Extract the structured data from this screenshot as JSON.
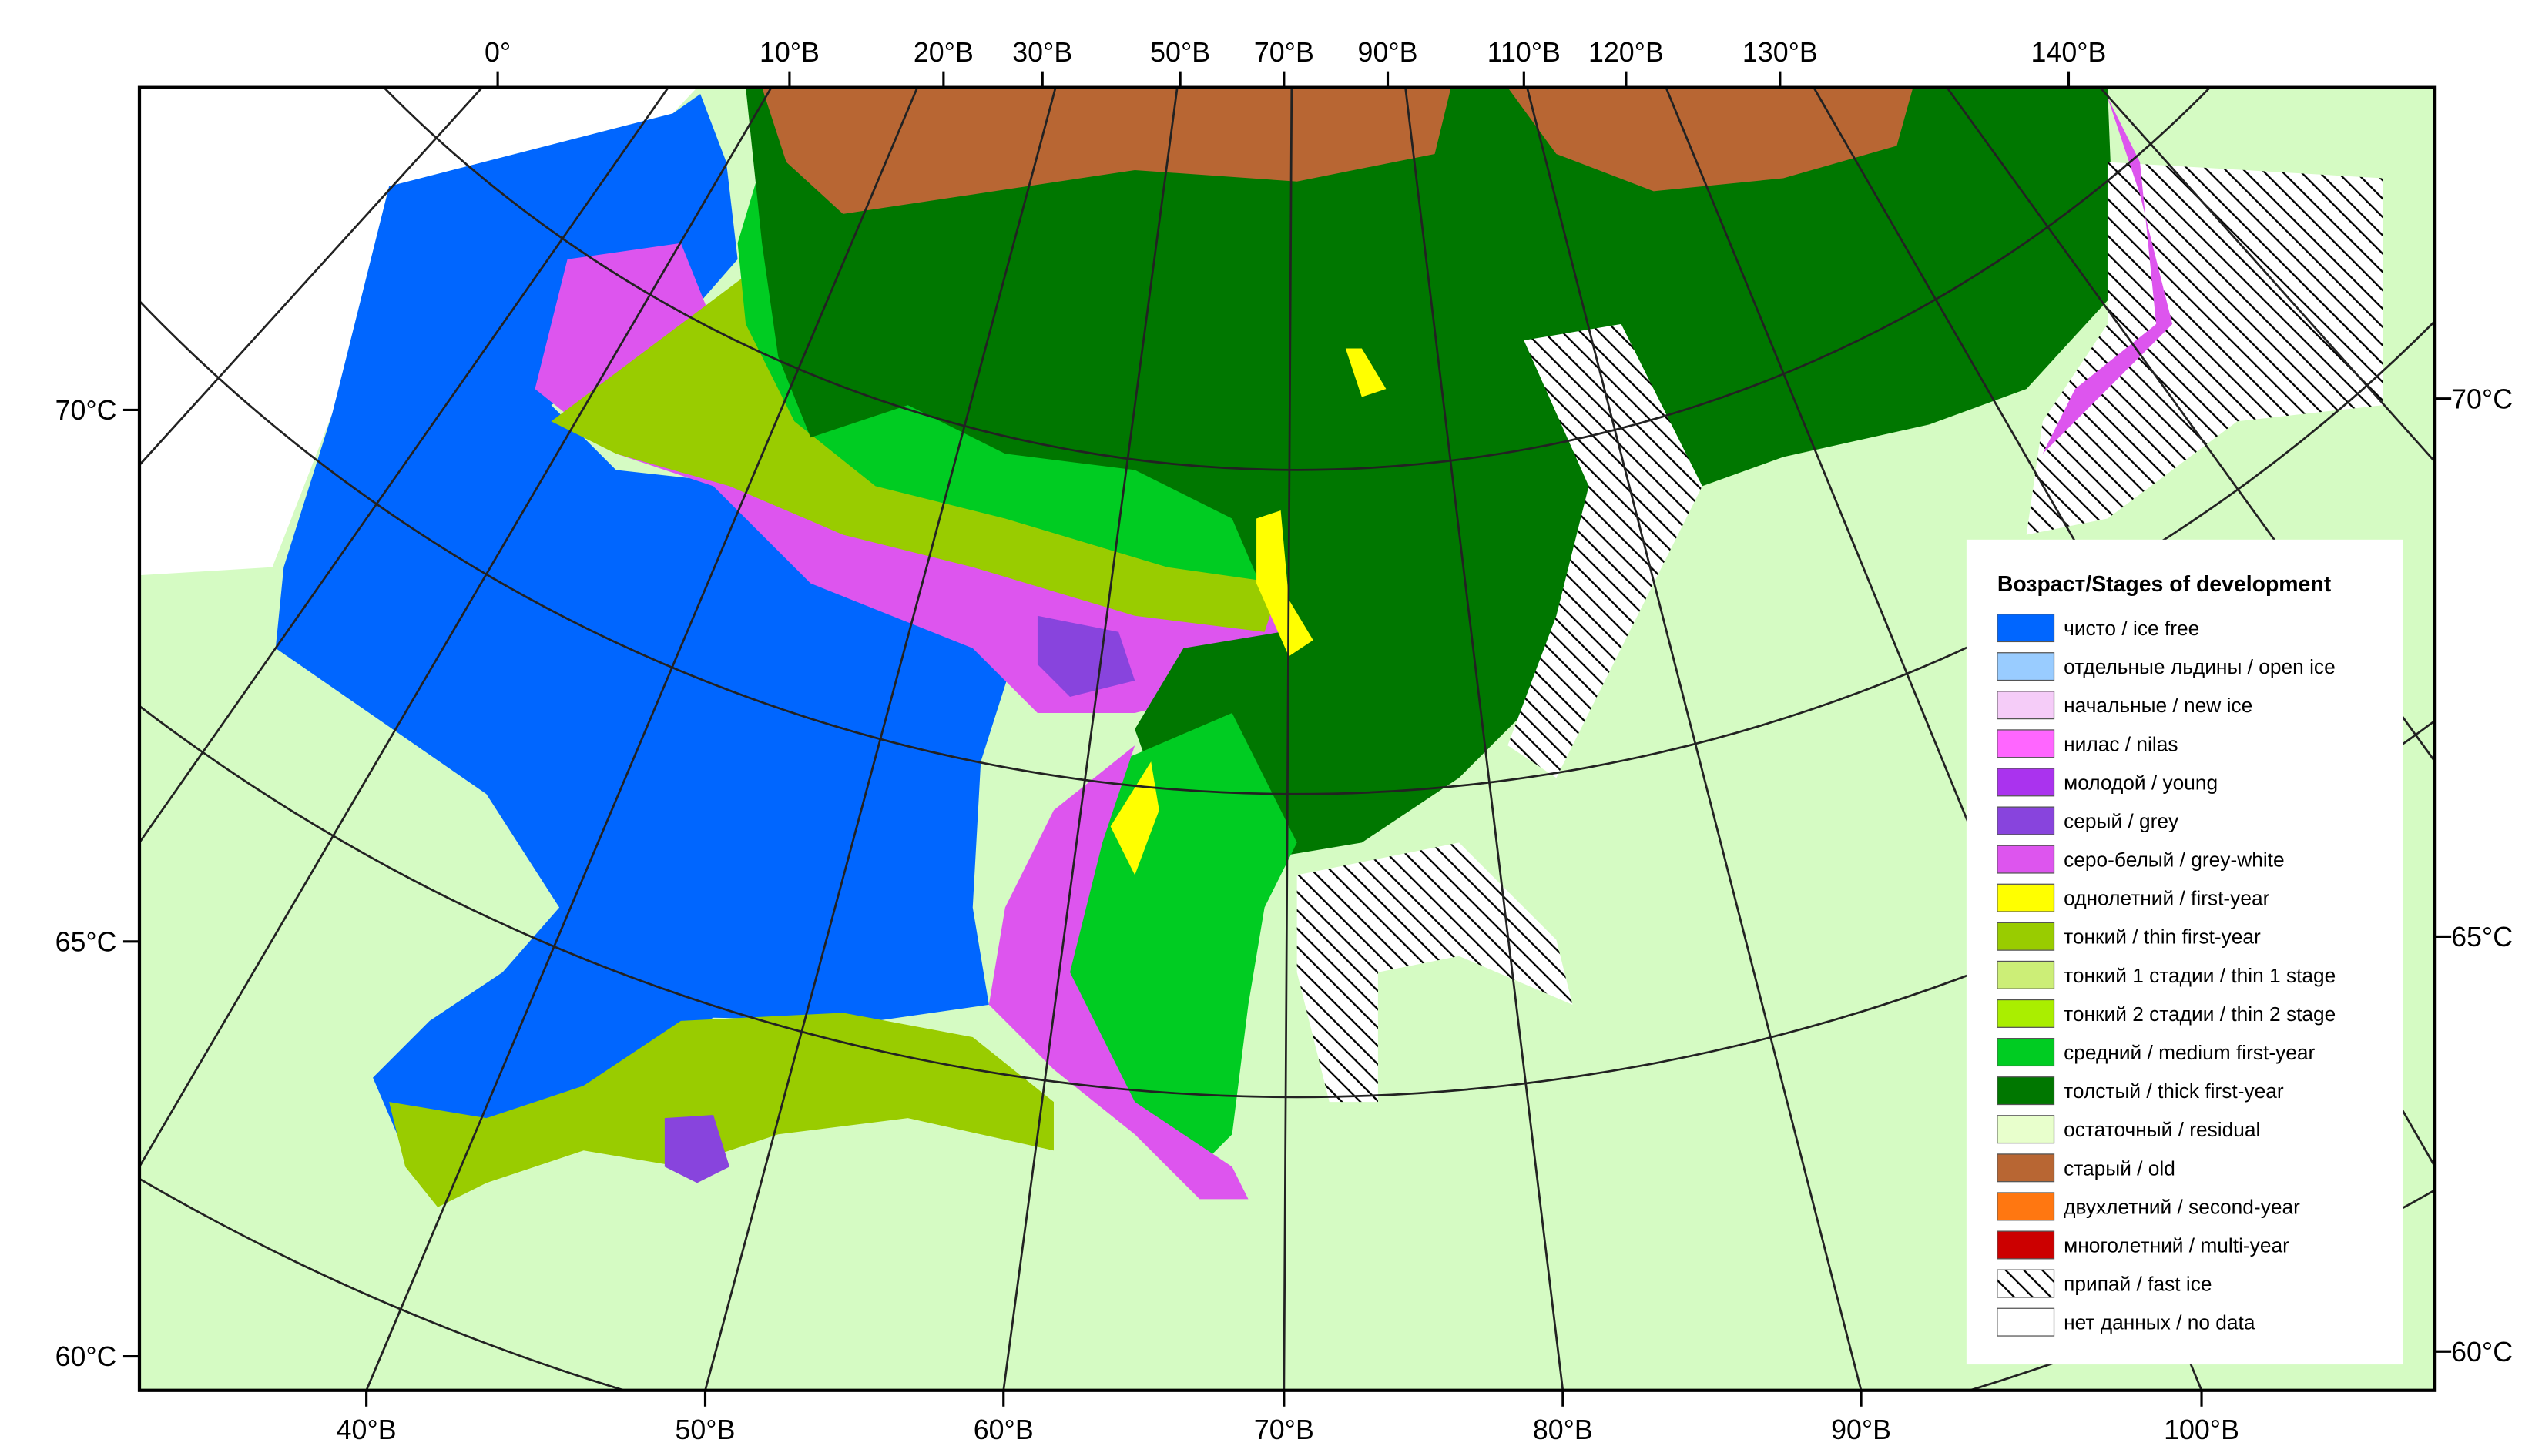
{
  "map": {
    "top_labels": [
      "0°",
      "10°В",
      "20°В",
      "30°В",
      "50°В",
      "70°В",
      "90°В",
      "110°В",
      "120°В",
      "130°В",
      "140°В"
    ],
    "bottom_labels": [
      "40°В",
      "50°В",
      "60°В",
      "70°В",
      "80°В",
      "90°В",
      "100°В"
    ],
    "left_labels": [
      "70°С",
      "65°С",
      "60°С"
    ],
    "right_labels": [
      "70°С",
      "65°С",
      "60°С"
    ],
    "legend": {
      "title": "Возраст/Stages of development",
      "items": [
        {
          "label": "чисто / ice free",
          "color": "#0066ff"
        },
        {
          "label": "отдельные льдины / open ice",
          "color": "#99ccff"
        },
        {
          "label": "начальные / new ice",
          "color": "#f5ccf8"
        },
        {
          "label": "нилас / nilas",
          "color": "#ff66ff"
        },
        {
          "label": "молодой / young",
          "color": "#aa33ee"
        },
        {
          "label": "серый / grey",
          "color": "#8844dd"
        },
        {
          "label": "серо-белый / grey-white",
          "color": "#dd55ee"
        },
        {
          "label": "однолетний / first-year",
          "color": "#ffff00"
        },
        {
          "label": "тонкий / thin first-year",
          "color": "#99cc00"
        },
        {
          "label": "тонкий 1 стадии / thin 1 stage",
          "color": "#ccee77"
        },
        {
          "label": "тонкий 2 стадии / thin 2 stage",
          "color": "#aaee00"
        },
        {
          "label": "средний / medium first-year",
          "color": "#00cc22"
        },
        {
          "label": "толстый / thick first-year",
          "color": "#007700"
        },
        {
          "label": "остаточный / residual",
          "color": "#e8ffcc"
        },
        {
          "label": "старый / old",
          "color": "#b86633"
        },
        {
          "label": "двухлетний / second-year",
          "color": "#ff7711"
        },
        {
          "label": "многолетний / multi-year",
          "color": "#cc0000"
        },
        {
          "label": "припай / fast ice"
        },
        {
          "label": "нет данных / no data",
          "color": "#ffffff"
        }
      ]
    }
  }
}
